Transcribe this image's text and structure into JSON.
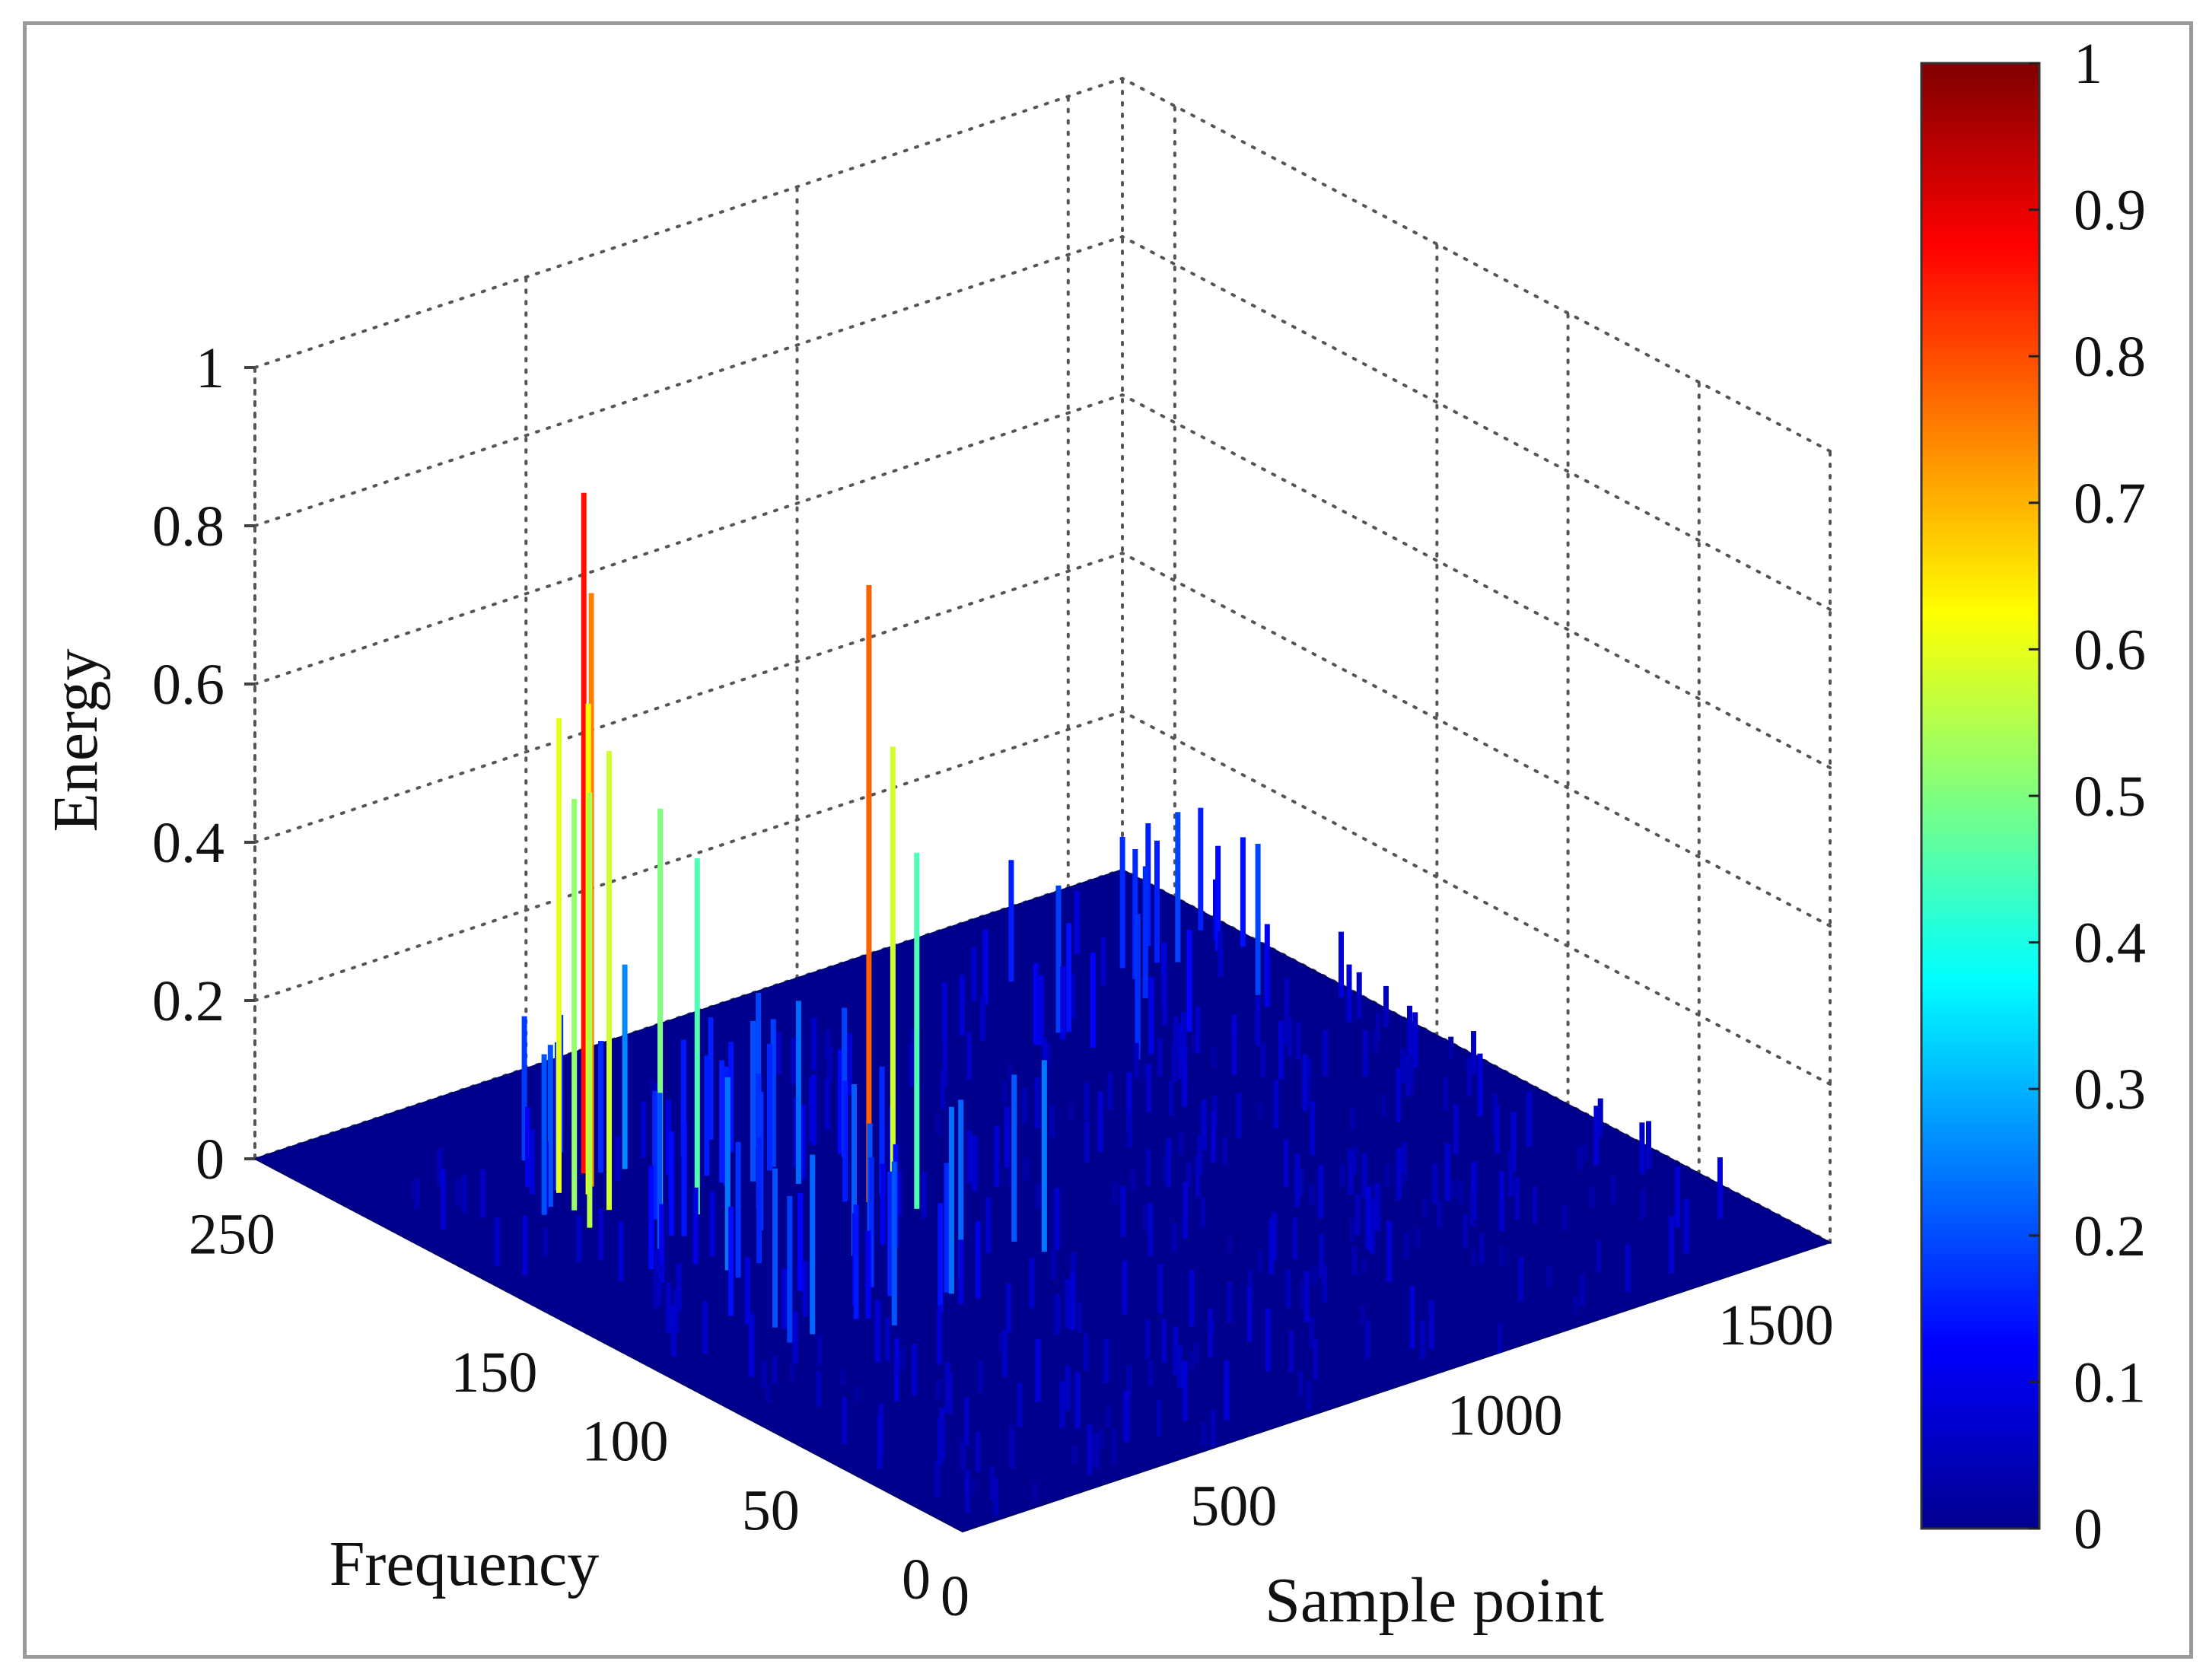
{
  "chart_data": {
    "type": "bar3d",
    "title": "",
    "xlabel": "Sample point",
    "ylabel": "Frequency",
    "zlabel": "Energy",
    "x_ticks": [
      "0",
      "500",
      "1000",
      "1500"
    ],
    "y_ticks": [
      "0",
      "50",
      "100",
      "150",
      "250"
    ],
    "z_ticks": [
      "0",
      "0.2",
      "0.4",
      "0.6",
      "0.8",
      "1"
    ],
    "colorbar_ticks": [
      "0",
      "0.1",
      "0.2",
      "0.3",
      "0.4",
      "0.5",
      "0.6",
      "0.7",
      "0.8",
      "0.9",
      "1"
    ],
    "colormap": "jet",
    "xlim": [
      0,
      1600
    ],
    "ylim": [
      0,
      270
    ],
    "zlim": [
      0,
      1
    ],
    "grid": true,
    "colorbar": "right",
    "peaks": [
      {
        "sample": 340,
        "frequency": 215,
        "energy": 0.86
      },
      {
        "sample": 320,
        "frequency": 208,
        "energy": 0.75
      },
      {
        "sample": 300,
        "frequency": 205,
        "energy": 0.62
      },
      {
        "sample": 290,
        "frequency": 195,
        "energy": 0.58
      },
      {
        "sample": 270,
        "frequency": 210,
        "energy": 0.6
      },
      {
        "sample": 250,
        "frequency": 200,
        "energy": 0.52
      },
      {
        "sample": 230,
        "frequency": 190,
        "energy": 0.55
      },
      {
        "sample": 360,
        "frequency": 190,
        "energy": 0.5
      },
      {
        "sample": 380,
        "frequency": 180,
        "energy": 0.45
      },
      {
        "sample": 600,
        "frequency": 160,
        "energy": 0.78
      },
      {
        "sample": 620,
        "frequency": 155,
        "energy": 0.58
      },
      {
        "sample": 640,
        "frequency": 150,
        "energy": 0.45
      }
    ]
  }
}
